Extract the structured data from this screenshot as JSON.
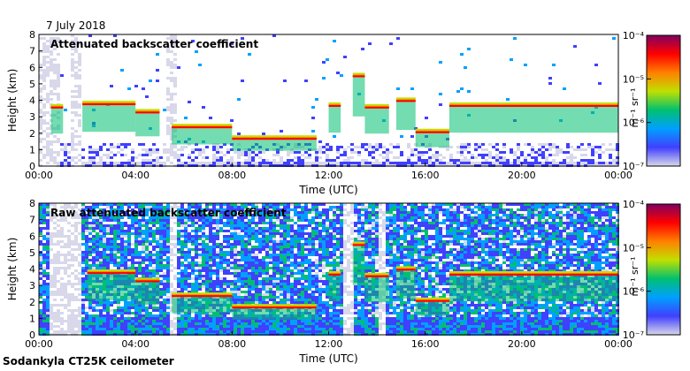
{
  "header": {
    "date": "7 July 2018",
    "footer": "Sodankyla CT25K ceilometer"
  },
  "chart_data": [
    {
      "type": "heatmap",
      "title": "Attenuated backscatter coefficient",
      "xlabel": "Time (UTC)",
      "ylabel": "Height (km)",
      "xlim": [
        0,
        24
      ],
      "ylim": [
        0,
        8
      ],
      "xticks": [
        "00:00",
        "04:00",
        "08:00",
        "12:00",
        "16:00",
        "20:00",
        "00:00"
      ],
      "yticks": [
        "0",
        "1",
        "2",
        "3",
        "4",
        "5",
        "6",
        "7",
        "8"
      ],
      "colorbar": {
        "label": "m⁻¹ sr⁻¹",
        "ticks": [
          "10⁻⁴",
          "10⁻⁵",
          "10⁻⁶",
          "10⁻⁷"
        ],
        "scale": "log",
        "range": [
          1e-07,
          0.0001
        ],
        "colors": [
          "#d8d8ea",
          "#4040ff",
          "#00a0ff",
          "#00c070",
          "#c0e000",
          "#ff8000",
          "#ff0000",
          "#800060"
        ]
      },
      "cloud_layer_km": [
        {
          "t_start": 0.5,
          "t_end": 1.0,
          "height": 3.5
        },
        {
          "t_start": 1.8,
          "t_end": 4.0,
          "height": 3.7
        },
        {
          "t_start": 4.0,
          "t_end": 5.0,
          "height": 3.2
        },
        {
          "t_start": 5.5,
          "t_end": 8.0,
          "height": 2.3
        },
        {
          "t_start": 8.0,
          "t_end": 11.5,
          "height": 1.6
        },
        {
          "t_start": 12.0,
          "t_end": 12.5,
          "height": 3.6
        },
        {
          "t_start": 13.0,
          "t_end": 13.5,
          "height": 5.4
        },
        {
          "t_start": 13.5,
          "t_end": 14.5,
          "height": 3.5
        },
        {
          "t_start": 14.8,
          "t_end": 15.6,
          "height": 3.9
        },
        {
          "t_start": 15.6,
          "t_end": 17.0,
          "height": 2.0
        },
        {
          "t_start": 17.0,
          "t_end": 24.0,
          "height": 3.6
        }
      ],
      "mask_gaps_h": [
        [
          0.0,
          0.8
        ],
        [
          1.2,
          1.7
        ],
        [
          5.2,
          5.6
        ]
      ]
    },
    {
      "type": "heatmap",
      "title": "Raw attenuated backscatter coefficient",
      "xlabel": "Time (UTC)",
      "ylabel": "Height (km)",
      "xlim": [
        0,
        24
      ],
      "ylim": [
        0,
        8
      ],
      "xticks": [
        "00:00",
        "04:00",
        "08:00",
        "12:00",
        "16:00",
        "20:00",
        "00:00"
      ],
      "yticks": [
        "0",
        "1",
        "2",
        "3",
        "4",
        "5",
        "6",
        "7",
        "8"
      ],
      "colorbar": {
        "label": "m⁻¹ sr⁻¹",
        "ticks": [
          "10⁻⁴",
          "10⁻⁵",
          "10⁻⁶",
          "10⁻⁷"
        ],
        "scale": "log",
        "range": [
          1e-07,
          0.0001
        ],
        "colors": [
          "#d8d8ea",
          "#4040ff",
          "#00a0ff",
          "#00c070",
          "#c0e000",
          "#ff8000",
          "#ff0000",
          "#800060"
        ]
      },
      "cloud_layer_km": [
        {
          "t_start": 2.0,
          "t_end": 4.0,
          "height": 3.7
        },
        {
          "t_start": 4.0,
          "t_end": 5.0,
          "height": 3.2
        },
        {
          "t_start": 5.5,
          "t_end": 8.0,
          "height": 2.3
        },
        {
          "t_start": 8.0,
          "t_end": 11.5,
          "height": 1.6
        },
        {
          "t_start": 12.0,
          "t_end": 12.5,
          "height": 3.6
        },
        {
          "t_start": 13.0,
          "t_end": 13.5,
          "height": 5.4
        },
        {
          "t_start": 13.5,
          "t_end": 14.5,
          "height": 3.5
        },
        {
          "t_start": 14.8,
          "t_end": 15.6,
          "height": 3.9
        },
        {
          "t_start": 15.6,
          "t_end": 17.0,
          "height": 2.0
        },
        {
          "t_start": 17.0,
          "t_end": 24.0,
          "height": 3.6
        }
      ],
      "mask_gaps_h": [
        [
          0.3,
          1.7
        ],
        [
          5.3,
          5.6
        ],
        [
          12.5,
          13.0
        ],
        [
          14.0,
          14.3
        ]
      ]
    }
  ]
}
